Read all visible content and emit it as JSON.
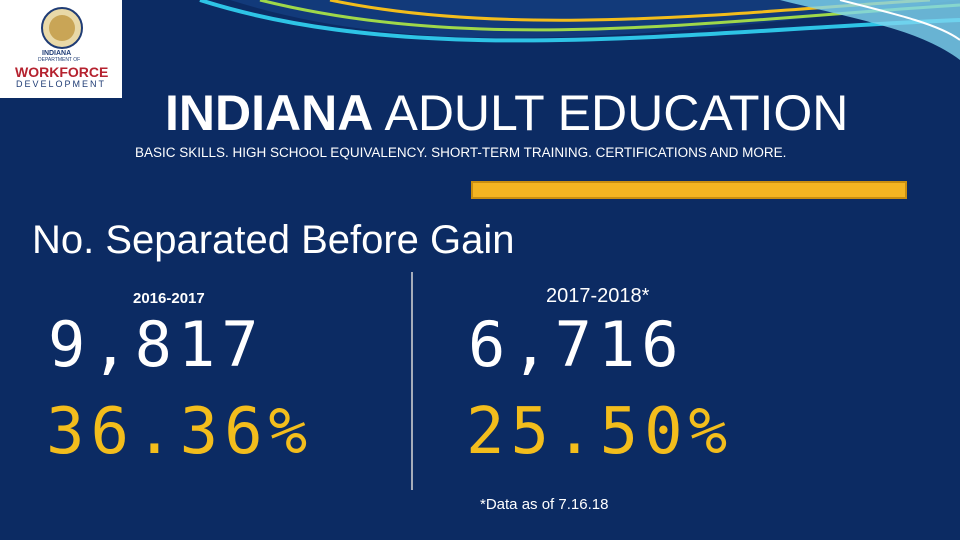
{
  "logo": {
    "lines": [
      "INDIANA",
      "DEPARTMENT OF",
      "WORKFORCE",
      "DEVELOPMENT"
    ]
  },
  "header": {
    "title_bold": "INDIANA",
    "title_rest": "ADULT EDUCATION",
    "subtitle": "BASIC SKILLS. HIGH SCHOOL EQUIVALENCY. SHORT-TERM TRAINING. CERTIFICATIONS AND MORE."
  },
  "heading": "No. Separated Before Gain",
  "columns": [
    {
      "period": "2016-2017",
      "count": "9,817",
      "percent": "36.36%"
    },
    {
      "period": "2017-2018*",
      "count": "6,716",
      "percent": "25.50%"
    }
  ],
  "footnote": "*Data as of 7.16.18"
}
